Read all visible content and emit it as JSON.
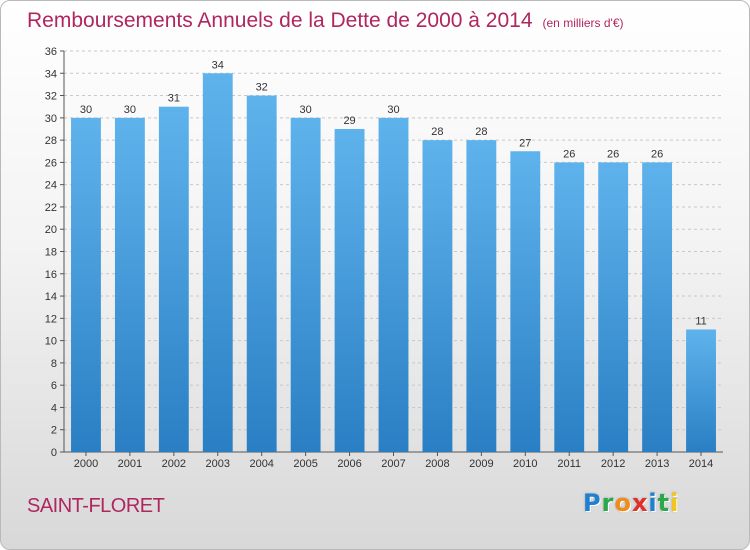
{
  "header": {
    "title": "Remboursements Annuels de la Dette de 2000 à 2014",
    "subtitle": "(en milliers d'€)"
  },
  "footer": {
    "town": "SAINT-FLORET",
    "logo_letters": [
      {
        "char": "P",
        "color": "#1f7fd1"
      },
      {
        "char": "r",
        "color": "#2aa84a"
      },
      {
        "char": "o",
        "color": "#f08c1a"
      },
      {
        "char": "x",
        "color": "#e0302a"
      },
      {
        "char": "i",
        "color": "#1f7fd1"
      },
      {
        "char": "t",
        "color": "#2aa84a"
      },
      {
        "char": "i",
        "color": "#f5c518"
      }
    ]
  },
  "colors": {
    "bar_top": "#5fb3ec",
    "bar_bottom": "#2a7fc4",
    "title": "#b0265f",
    "grid": "#c8c8c8"
  },
  "chart_data": {
    "type": "bar",
    "categories": [
      "2000",
      "2001",
      "2002",
      "2003",
      "2004",
      "2005",
      "2006",
      "2007",
      "2008",
      "2009",
      "2010",
      "2011",
      "2012",
      "2013",
      "2014"
    ],
    "values": [
      30,
      30,
      31,
      34,
      32,
      30,
      29,
      30,
      28,
      28,
      27,
      26,
      26,
      26,
      11
    ],
    "ylim": [
      0,
      36
    ],
    "yticks": [
      0,
      2,
      4,
      6,
      8,
      10,
      12,
      14,
      16,
      18,
      20,
      22,
      24,
      26,
      28,
      30,
      32,
      34,
      36
    ],
    "grid": true,
    "legend": "none"
  }
}
